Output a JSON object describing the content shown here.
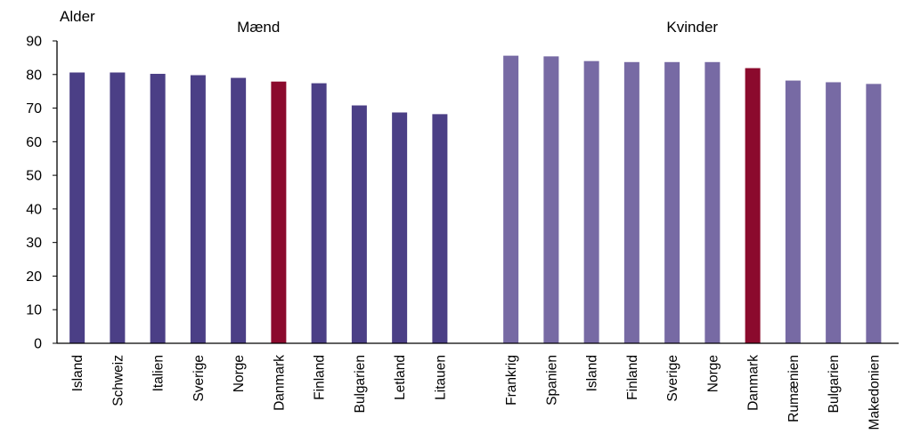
{
  "chart_data": {
    "type": "bar",
    "ylabel": "Alder",
    "ylim": [
      0,
      90
    ],
    "yticks": [
      0,
      10,
      20,
      30,
      40,
      50,
      60,
      70,
      80,
      90
    ],
    "grid": false,
    "highlight_color": "#8b0a2d",
    "groups": [
      {
        "title": "Mænd",
        "color": "#4b3f86",
        "categories": [
          "Island",
          "Schweiz",
          "Italien",
          "Sverige",
          "Norge",
          "Danmark",
          "Finland",
          "Bulgarien",
          "Letland",
          "Litauen"
        ],
        "values": [
          80.6,
          80.6,
          80.2,
          79.8,
          79.0,
          77.9,
          77.4,
          70.8,
          68.7,
          68.2
        ],
        "highlight": "Danmark"
      },
      {
        "title": "Kvinder",
        "color": "#776aa4",
        "categories": [
          "Frankrig",
          "Spanien",
          "Island",
          "Finland",
          "Sverige",
          "Norge",
          "Danmark",
          "Rumænien",
          "Bulgarien",
          "Makedonien"
        ],
        "values": [
          85.6,
          85.4,
          84.0,
          83.7,
          83.7,
          83.7,
          81.9,
          78.2,
          77.7,
          77.2
        ],
        "highlight": "Danmark"
      }
    ]
  }
}
